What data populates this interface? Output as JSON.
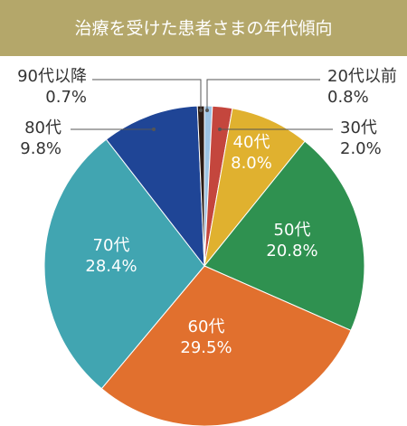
{
  "chart_data": {
    "type": "pie",
    "title": "治療を受けた患者さまの年代傾向",
    "categories": [
      "20代以前",
      "30代",
      "40代",
      "50代",
      "60代",
      "70代",
      "80代",
      "90代以降"
    ],
    "values": [
      0.8,
      2.0,
      8.0,
      20.8,
      29.5,
      28.4,
      9.8,
      0.7
    ],
    "value_labels": [
      "0.8%",
      "2.0%",
      "8.0%",
      "20.8%",
      "29.5%",
      "28.4%",
      "9.8%",
      "0.7%"
    ],
    "colors": [
      "#9cc3e4",
      "#c4463d",
      "#e0b12f",
      "#2f9150",
      "#e1702e",
      "#41a5b1",
      "#1f4596",
      "#2b1b15"
    ]
  }
}
